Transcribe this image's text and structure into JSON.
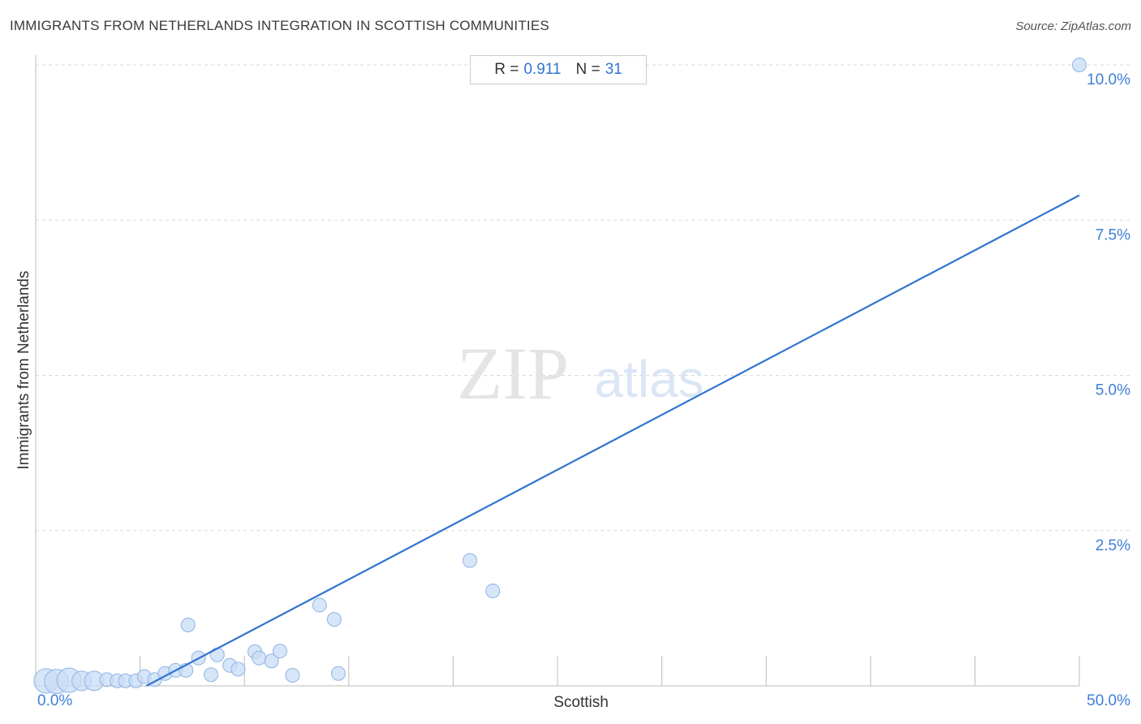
{
  "header": {
    "title": "IMMIGRANTS FROM NETHERLANDS INTEGRATION IN SCOTTISH COMMUNITIES",
    "source": "Source: ZipAtlas.com"
  },
  "stats": {
    "r_label": "R =",
    "r_value": "0.911",
    "n_label": "N =",
    "n_value": "31"
  },
  "watermark": {
    "zip": "ZIP",
    "atlas": "atlas"
  },
  "colors": {
    "accent": "#2f74d0",
    "point_fill": "#c9dcf5",
    "point_stroke": "#8fb4e3",
    "grid": "#d9d9d9",
    "axis_text": "#3f7fd6"
  },
  "chart_data": {
    "type": "scatter",
    "title": "IMMIGRANTS FROM NETHERLANDS INTEGRATION IN SCOTTISH COMMUNITIES",
    "xlabel": "Scottish",
    "ylabel": "Immigrants from Netherlands",
    "xlim": [
      0,
      50
    ],
    "ylim": [
      0,
      10
    ],
    "x_tick_labels": [
      "0.0%",
      "50.0%"
    ],
    "y_ticks": [
      2.5,
      5.0,
      7.5,
      10.0
    ],
    "y_tick_labels": [
      "2.5%",
      "5.0%",
      "7.5%",
      "10.0%"
    ],
    "grid": "horizontal dashed",
    "trendline": {
      "x": [
        5.3,
        50.0
      ],
      "y": [
        0.0,
        7.9
      ]
    },
    "points": [
      {
        "x": 0.5,
        "y": 0.08,
        "s": 3
      },
      {
        "x": 1.0,
        "y": 0.07,
        "s": 3
      },
      {
        "x": 1.6,
        "y": 0.09,
        "s": 3
      },
      {
        "x": 2.2,
        "y": 0.08,
        "s": 2
      },
      {
        "x": 2.8,
        "y": 0.08,
        "s": 2
      },
      {
        "x": 3.4,
        "y": 0.1,
        "s": 1
      },
      {
        "x": 3.9,
        "y": 0.08,
        "s": 1
      },
      {
        "x": 4.3,
        "y": 0.08,
        "s": 1
      },
      {
        "x": 4.8,
        "y": 0.08,
        "s": 1
      },
      {
        "x": 5.2,
        "y": 0.15,
        "s": 1
      },
      {
        "x": 5.7,
        "y": 0.1,
        "s": 1
      },
      {
        "x": 6.2,
        "y": 0.2,
        "s": 1
      },
      {
        "x": 6.7,
        "y": 0.25,
        "s": 1
      },
      {
        "x": 7.2,
        "y": 0.25,
        "s": 1
      },
      {
        "x": 7.3,
        "y": 0.98,
        "s": 1
      },
      {
        "x": 7.8,
        "y": 0.45,
        "s": 1
      },
      {
        "x": 8.4,
        "y": 0.18,
        "s": 1
      },
      {
        "x": 8.7,
        "y": 0.5,
        "s": 1
      },
      {
        "x": 9.3,
        "y": 0.33,
        "s": 1
      },
      {
        "x": 9.7,
        "y": 0.27,
        "s": 1
      },
      {
        "x": 10.5,
        "y": 0.55,
        "s": 1
      },
      {
        "x": 10.7,
        "y": 0.45,
        "s": 1
      },
      {
        "x": 11.3,
        "y": 0.4,
        "s": 1
      },
      {
        "x": 11.7,
        "y": 0.56,
        "s": 1
      },
      {
        "x": 12.3,
        "y": 0.17,
        "s": 1
      },
      {
        "x": 13.6,
        "y": 1.3,
        "s": 1
      },
      {
        "x": 14.3,
        "y": 1.07,
        "s": 1
      },
      {
        "x": 14.5,
        "y": 0.2,
        "s": 1
      },
      {
        "x": 20.8,
        "y": 2.02,
        "s": 1
      },
      {
        "x": 21.9,
        "y": 1.53,
        "s": 1
      },
      {
        "x": 50.0,
        "y": 10.0,
        "s": 1
      }
    ]
  }
}
